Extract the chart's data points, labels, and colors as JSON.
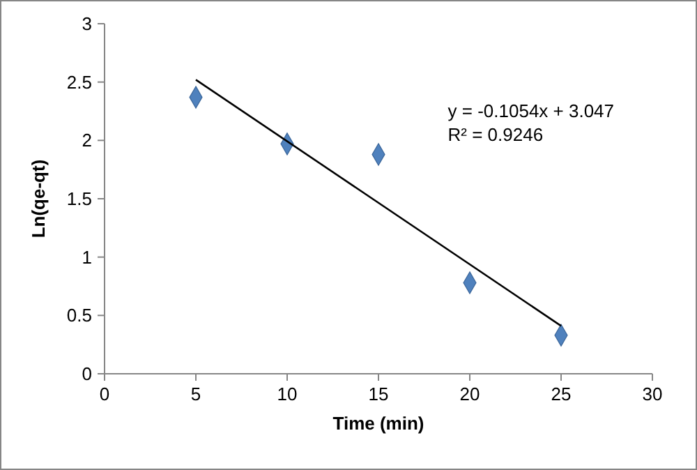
{
  "chart_data": {
    "type": "scatter",
    "xlabel": "Time (min)",
    "ylabel": "Ln(qe-qt)",
    "xlim": [
      0,
      30
    ],
    "ylim": [
      0,
      3
    ],
    "xticks": [
      0,
      5,
      10,
      15,
      20,
      25,
      30
    ],
    "yticks": [
      0,
      0.5,
      1,
      1.5,
      2,
      2.5,
      3
    ],
    "grid": false,
    "annotations": [
      "y = -0.1054x + 3.047",
      "R² = 0.9246"
    ],
    "series": [
      {
        "color": "#4f81bd",
        "marker": "diamond",
        "x": [
          5,
          10,
          15,
          20,
          25
        ],
        "values": [
          2.37,
          1.97,
          1.88,
          0.78,
          0.33
        ]
      },
      {
        "type": "line",
        "marker": "none",
        "color": "#000000",
        "x": [
          5,
          25
        ],
        "values": [
          2.52,
          0.41
        ]
      }
    ]
  }
}
